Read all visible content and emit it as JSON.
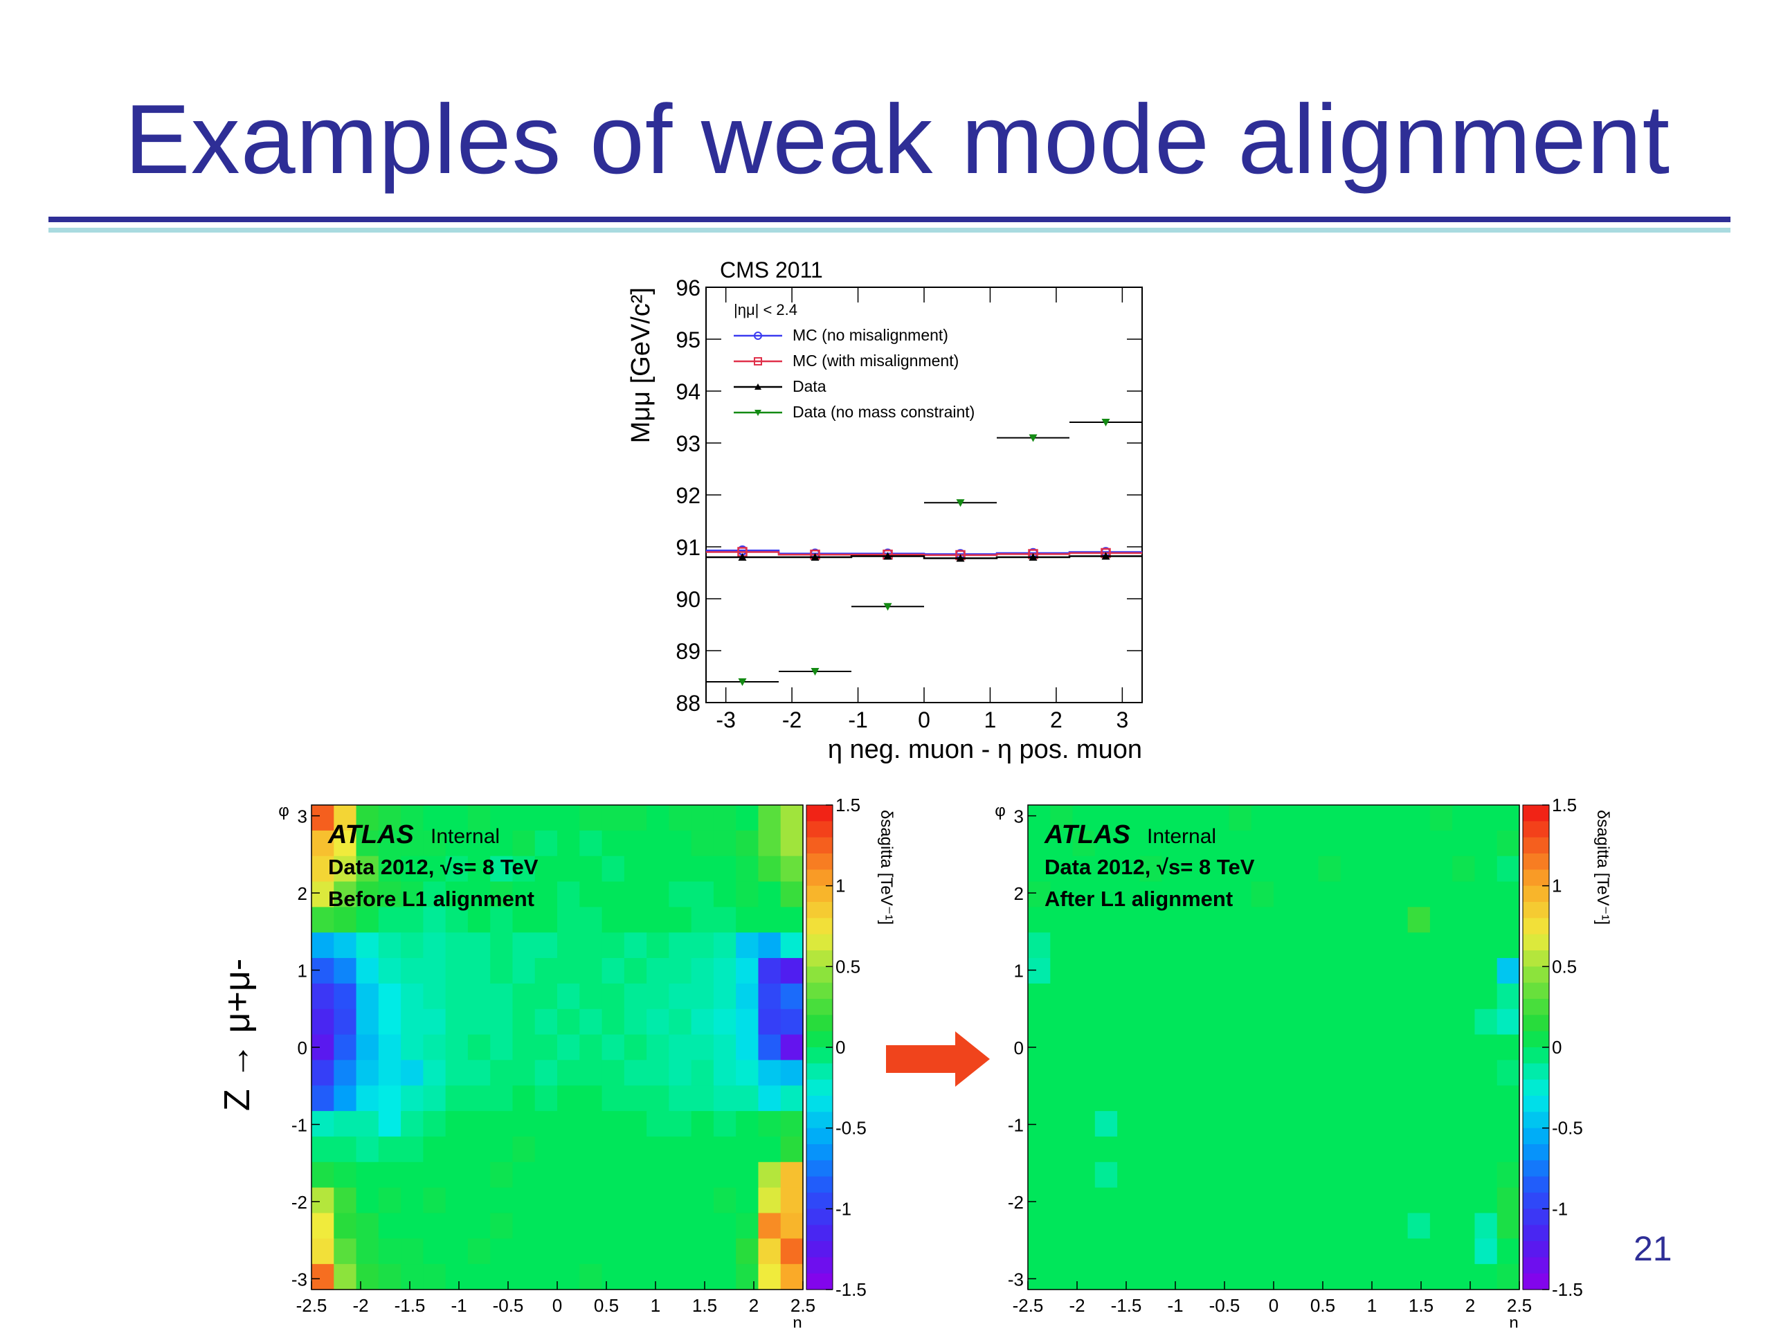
{
  "slide": {
    "title": "Examples of weak mode alignment",
    "page_number": "21",
    "side_label": "Z → μ+μ-",
    "colors": {
      "title": "#2e2e96",
      "rule": "#2e2e96",
      "rule_accent": "#a9dbe0",
      "arrow": "#f0441c"
    }
  },
  "chart_data": [
    {
      "type": "scatter",
      "title": "CMS 2011",
      "xlabel": "η neg. muon - η pos. muon",
      "ylabel": "Mμμ [GeV/c²]",
      "xlim": [
        -3.3,
        3.3
      ],
      "ylim": [
        88,
        96
      ],
      "xticks": [
        "-3",
        "-2",
        "-1",
        "0",
        "1",
        "2",
        "3"
      ],
      "yticks": [
        "88",
        "89",
        "90",
        "91",
        "92",
        "93",
        "94",
        "95",
        "96"
      ],
      "legend_header": "|ημ| < 2.4",
      "legend_position": "top-left",
      "series": [
        {
          "name": "MC (no misalignment)",
          "color": "#3a3af0",
          "marker": "circle",
          "x": [
            -2.75,
            -1.65,
            -0.55,
            0.55,
            1.65,
            2.75
          ],
          "xerr": 0.55,
          "y": [
            90.93,
            90.87,
            90.87,
            90.86,
            90.88,
            90.9
          ]
        },
        {
          "name": "MC (with misalignment)",
          "color": "#e0304a",
          "marker": "square",
          "x": [
            -2.75,
            -1.65,
            -0.55,
            0.55,
            1.65,
            2.75
          ],
          "xerr": 0.55,
          "y": [
            90.9,
            90.85,
            90.85,
            90.84,
            90.86,
            90.88
          ]
        },
        {
          "name": "Data",
          "color": "#000000",
          "marker": "triangle-up",
          "x": [
            -2.75,
            -1.65,
            -0.55,
            0.55,
            1.65,
            2.75
          ],
          "xerr": 0.55,
          "y": [
            90.8,
            90.8,
            90.82,
            90.78,
            90.8,
            90.82
          ]
        },
        {
          "name": "Data (no mass constraint)",
          "color": "#138a13",
          "marker": "triangle-down",
          "x": [
            -2.75,
            -1.65,
            -0.55,
            0.55,
            1.65,
            2.75
          ],
          "xerr": 0.55,
          "y": [
            88.4,
            88.6,
            89.85,
            91.85,
            93.1,
            93.4
          ]
        }
      ]
    },
    {
      "type": "heatmap",
      "experiment": "ATLAS",
      "status": "Internal",
      "line1": "Data 2012, √s= 8 TeV",
      "line2": "Before L1 alignment",
      "xlabel": "η",
      "ylabel": "φ",
      "zlabel": "δsagitta [TeV⁻¹]",
      "xlim": [
        -2.5,
        2.5
      ],
      "ylim": [
        -3.14,
        3.14
      ],
      "zlim": [
        -1.5,
        1.5
      ],
      "xticks": [
        "-2.5",
        "-2",
        "-1.5",
        "-1",
        "-0.5",
        "0",
        "0.5",
        "1",
        "1.5",
        "2",
        "2.5"
      ],
      "yticks": [
        "-3",
        "-2",
        "-1",
        "0",
        "1",
        "2",
        "3"
      ],
      "zticks": [
        "-1.5",
        "-1",
        "-0.5",
        "0",
        "0.5",
        "1",
        "1.5"
      ],
      "values": [
        [
          1.25,
          0.8,
          0.15,
          0.1,
          0.05,
          0.0,
          0.0,
          0.05,
          0.0,
          0.0,
          0.0,
          0.0,
          0.05,
          0.05,
          0.05,
          0.0,
          0.05,
          0.05,
          0.05,
          0.0,
          0.3,
          0.5
        ],
        [
          0.9,
          0.7,
          0.1,
          0.05,
          0.05,
          0.05,
          0.0,
          0.0,
          0.0,
          0.05,
          -0.05,
          0.0,
          -0.05,
          0.0,
          0.0,
          0.0,
          0.0,
          0.05,
          0.05,
          0.1,
          0.3,
          0.5
        ],
        [
          0.8,
          0.6,
          0.3,
          0.05,
          0.0,
          0.0,
          -0.05,
          0.0,
          -0.1,
          -0.05,
          0.0,
          0.0,
          0.0,
          -0.05,
          0.0,
          0.0,
          0.0,
          0.0,
          0.0,
          0.05,
          0.2,
          0.35
        ],
        [
          0.65,
          0.35,
          0.15,
          0.1,
          0.05,
          -0.05,
          0.0,
          0.0,
          0.05,
          0.0,
          0.0,
          -0.05,
          0.0,
          0.0,
          0.0,
          0.0,
          -0.05,
          -0.05,
          0.0,
          0.05,
          0.0,
          0.2
        ],
        [
          0.2,
          0.15,
          0.05,
          -0.05,
          -0.05,
          -0.1,
          -0.05,
          0.0,
          -0.05,
          0.0,
          0.0,
          -0.05,
          -0.05,
          0.0,
          0.0,
          0.0,
          0.0,
          -0.05,
          -0.05,
          0.0,
          0.0,
          0.0
        ],
        [
          -0.55,
          -0.45,
          -0.25,
          -0.15,
          -0.1,
          -0.15,
          -0.1,
          -0.1,
          -0.05,
          -0.1,
          -0.1,
          -0.05,
          -0.05,
          -0.05,
          -0.1,
          -0.05,
          -0.1,
          -0.1,
          -0.15,
          -0.45,
          -0.55,
          -0.25
        ],
        [
          -0.85,
          -0.7,
          -0.35,
          -0.2,
          -0.15,
          -0.15,
          -0.1,
          -0.1,
          -0.05,
          -0.1,
          -0.05,
          -0.05,
          -0.05,
          -0.1,
          -0.05,
          -0.1,
          -0.1,
          -0.15,
          -0.2,
          -0.35,
          -1.05,
          -1.2
        ],
        [
          -1.05,
          -0.9,
          -0.45,
          -0.3,
          -0.2,
          -0.15,
          -0.1,
          -0.1,
          -0.1,
          -0.05,
          -0.05,
          -0.1,
          -0.05,
          -0.05,
          -0.1,
          -0.1,
          -0.15,
          -0.15,
          -0.2,
          -0.4,
          -0.95,
          -0.8
        ],
        [
          -1.15,
          -0.95,
          -0.45,
          -0.3,
          -0.2,
          -0.2,
          -0.1,
          -0.1,
          -0.1,
          -0.05,
          -0.1,
          -0.05,
          -0.1,
          -0.05,
          -0.1,
          -0.15,
          -0.1,
          -0.2,
          -0.25,
          -0.35,
          -1.0,
          -0.95
        ],
        [
          -1.25,
          -0.85,
          -0.5,
          -0.35,
          -0.2,
          -0.15,
          -0.1,
          -0.05,
          -0.1,
          -0.05,
          -0.05,
          -0.1,
          -0.05,
          -0.1,
          -0.05,
          -0.1,
          -0.15,
          -0.15,
          -0.2,
          -0.35,
          -0.85,
          -1.3
        ],
        [
          -1.0,
          -0.7,
          -0.45,
          -0.35,
          -0.4,
          -0.2,
          -0.1,
          -0.1,
          -0.05,
          -0.05,
          -0.1,
          -0.05,
          -0.05,
          -0.05,
          -0.1,
          -0.1,
          -0.15,
          -0.1,
          -0.2,
          -0.25,
          -0.45,
          -0.5
        ],
        [
          -0.85,
          -0.6,
          -0.35,
          -0.3,
          -0.2,
          -0.15,
          -0.05,
          -0.05,
          -0.05,
          0.0,
          -0.05,
          0.0,
          0.0,
          -0.05,
          -0.05,
          -0.05,
          -0.1,
          -0.1,
          -0.15,
          -0.15,
          -0.35,
          -0.2
        ],
        [
          -0.2,
          -0.15,
          -0.15,
          -0.3,
          -0.1,
          -0.05,
          0.0,
          0.0,
          0.0,
          0.0,
          0.0,
          0.0,
          0.0,
          0.0,
          0.0,
          -0.05,
          -0.05,
          0.0,
          -0.05,
          0.0,
          0.05,
          0.1
        ],
        [
          -0.05,
          -0.05,
          -0.1,
          -0.05,
          -0.05,
          0.0,
          0.0,
          0.0,
          0.0,
          0.05,
          0.0,
          0.0,
          0.0,
          0.0,
          0.0,
          0.0,
          0.0,
          0.0,
          0.0,
          0.0,
          0.0,
          0.15
        ],
        [
          0.1,
          0.05,
          0.0,
          0.0,
          0.0,
          0.0,
          0.0,
          0.0,
          0.05,
          0.0,
          0.0,
          0.0,
          0.0,
          0.0,
          0.0,
          0.0,
          0.0,
          0.0,
          0.0,
          0.0,
          0.55,
          0.9
        ],
        [
          0.55,
          0.2,
          0.0,
          0.05,
          0.0,
          0.05,
          0.0,
          0.0,
          0.0,
          0.0,
          0.0,
          0.0,
          0.0,
          0.0,
          0.0,
          0.0,
          0.0,
          0.0,
          0.05,
          0.0,
          0.65,
          0.9
        ],
        [
          0.7,
          0.15,
          0.1,
          0.0,
          0.0,
          0.0,
          0.0,
          0.0,
          0.05,
          0.0,
          0.0,
          0.0,
          0.0,
          0.0,
          0.0,
          0.0,
          0.0,
          0.0,
          0.0,
          0.05,
          1.1,
          0.95
        ],
        [
          0.75,
          0.3,
          0.1,
          0.05,
          0.05,
          0.0,
          0.0,
          0.05,
          0.0,
          0.0,
          0.0,
          0.0,
          0.0,
          0.0,
          0.0,
          0.0,
          0.0,
          0.0,
          0.0,
          0.15,
          0.8,
          1.2
        ],
        [
          1.2,
          0.45,
          0.15,
          0.1,
          0.05,
          0.05,
          0.0,
          0.0,
          0.0,
          0.0,
          0.0,
          0.0,
          0.05,
          0.0,
          0.0,
          0.0,
          0.0,
          0.0,
          0.0,
          0.1,
          0.7,
          1.0
        ]
      ]
    },
    {
      "type": "heatmap",
      "experiment": "ATLAS",
      "status": "Internal",
      "line1": "Data 2012, √s= 8 TeV",
      "line2": "After L1 alignment",
      "xlabel": "η",
      "ylabel": "φ",
      "zlabel": "δsagitta [TeV⁻¹]",
      "xlim": [
        -2.5,
        2.5
      ],
      "ylim": [
        -3.14,
        3.14
      ],
      "zlim": [
        -1.5,
        1.5
      ],
      "xticks": [
        "-2.5",
        "-2",
        "-1.5",
        "-1",
        "-0.5",
        "0",
        "0.5",
        "1",
        "1.5",
        "2",
        "2.5"
      ],
      "yticks": [
        "-3",
        "-2",
        "-1",
        "0",
        "1",
        "2",
        "3"
      ],
      "zticks": [
        "-1.5",
        "-1",
        "-0.5",
        "0",
        "0.5",
        "1",
        "1.5"
      ],
      "values": [
        [
          0.0,
          0.05,
          0.0,
          0.0,
          0.0,
          0.0,
          0.0,
          0.0,
          0.0,
          0.05,
          0.0,
          0.0,
          0.0,
          0.0,
          0.0,
          0.0,
          0.0,
          0.0,
          0.05,
          0.0,
          0.0,
          0.0
        ],
        [
          0.0,
          0.0,
          0.05,
          0.0,
          0.0,
          0.0,
          0.0,
          0.0,
          0.0,
          0.0,
          0.0,
          0.0,
          0.0,
          0.0,
          0.0,
          0.0,
          0.0,
          0.0,
          0.0,
          0.0,
          0.0,
          0.05
        ],
        [
          0.0,
          0.0,
          0.0,
          0.0,
          0.0,
          0.05,
          0.0,
          0.0,
          0.0,
          0.0,
          0.0,
          0.0,
          0.0,
          0.05,
          0.0,
          0.0,
          0.0,
          0.0,
          0.0,
          0.05,
          0.0,
          -0.05
        ],
        [
          0.05,
          0.0,
          0.0,
          0.0,
          0.0,
          0.0,
          0.0,
          0.0,
          0.0,
          0.0,
          0.05,
          0.0,
          0.0,
          0.0,
          0.0,
          0.0,
          0.0,
          0.0,
          0.0,
          0.0,
          0.0,
          0.0
        ],
        [
          0.0,
          0.0,
          0.0,
          0.0,
          0.0,
          0.0,
          0.0,
          0.0,
          0.0,
          0.0,
          0.0,
          0.0,
          0.0,
          0.0,
          0.0,
          0.0,
          0.0,
          0.2,
          0.0,
          0.0,
          0.0,
          0.0
        ],
        [
          -0.1,
          0.0,
          0.0,
          0.0,
          0.0,
          0.0,
          0.0,
          0.0,
          0.0,
          0.0,
          0.0,
          0.0,
          0.0,
          0.0,
          0.0,
          0.0,
          0.0,
          0.0,
          0.0,
          0.0,
          0.0,
          0.0
        ],
        [
          -0.15,
          0.0,
          0.0,
          0.0,
          0.0,
          0.0,
          0.0,
          0.0,
          0.0,
          0.0,
          0.0,
          0.0,
          0.0,
          0.0,
          0.0,
          0.0,
          0.0,
          0.0,
          0.0,
          0.0,
          0.0,
          -0.45
        ],
        [
          0.0,
          0.0,
          0.0,
          0.0,
          0.0,
          0.0,
          0.0,
          0.0,
          0.0,
          0.0,
          0.0,
          0.0,
          0.0,
          0.0,
          0.0,
          0.0,
          0.0,
          0.0,
          0.0,
          0.0,
          0.0,
          -0.1
        ],
        [
          0.0,
          0.0,
          0.0,
          0.0,
          0.0,
          0.0,
          0.0,
          0.0,
          0.0,
          0.0,
          0.0,
          0.0,
          0.0,
          0.0,
          0.0,
          0.0,
          0.0,
          0.0,
          0.0,
          0.0,
          -0.1,
          -0.2
        ],
        [
          0.0,
          0.0,
          0.0,
          0.0,
          0.0,
          0.0,
          0.0,
          0.0,
          0.0,
          0.0,
          0.0,
          0.0,
          0.0,
          0.0,
          0.0,
          0.0,
          0.0,
          0.0,
          0.0,
          0.0,
          0.0,
          0.0
        ],
        [
          0.0,
          0.0,
          0.0,
          0.0,
          0.0,
          0.0,
          0.0,
          0.0,
          0.0,
          0.0,
          0.0,
          0.0,
          0.0,
          0.0,
          0.0,
          0.0,
          0.0,
          0.0,
          0.0,
          0.0,
          0.0,
          -0.05
        ],
        [
          0.0,
          0.0,
          0.0,
          0.0,
          0.0,
          0.0,
          0.0,
          0.0,
          0.0,
          0.0,
          0.0,
          0.0,
          0.0,
          0.0,
          0.0,
          0.0,
          0.0,
          0.0,
          0.0,
          0.0,
          0.0,
          0.0
        ],
        [
          0.0,
          0.0,
          0.0,
          -0.15,
          0.0,
          0.0,
          0.0,
          0.0,
          0.0,
          0.0,
          0.0,
          0.0,
          0.0,
          0.0,
          0.0,
          0.0,
          0.0,
          0.0,
          0.0,
          0.0,
          0.0,
          0.0
        ],
        [
          0.0,
          0.0,
          0.0,
          0.0,
          0.0,
          0.0,
          0.0,
          0.0,
          0.0,
          0.0,
          0.0,
          0.0,
          0.0,
          0.0,
          0.0,
          0.0,
          0.0,
          0.0,
          0.0,
          0.0,
          0.0,
          0.0
        ],
        [
          0.0,
          0.0,
          0.0,
          -0.1,
          0.0,
          0.0,
          0.0,
          0.0,
          0.0,
          0.0,
          0.0,
          0.0,
          0.0,
          0.0,
          0.0,
          0.0,
          0.0,
          0.0,
          0.0,
          0.0,
          0.0,
          0.05
        ],
        [
          0.0,
          0.0,
          0.0,
          0.0,
          0.0,
          0.0,
          0.0,
          0.0,
          0.0,
          0.0,
          0.0,
          0.0,
          0.0,
          0.0,
          0.0,
          0.0,
          0.0,
          0.0,
          0.0,
          0.0,
          0.0,
          0.1
        ],
        [
          0.0,
          0.0,
          0.0,
          0.0,
          0.0,
          0.0,
          0.0,
          0.0,
          0.0,
          0.0,
          0.0,
          0.0,
          0.0,
          0.0,
          0.0,
          0.0,
          0.0,
          -0.1,
          0.0,
          0.0,
          -0.15,
          0.1
        ],
        [
          0.0,
          0.0,
          0.0,
          0.0,
          0.0,
          0.0,
          0.0,
          0.0,
          0.0,
          0.0,
          0.0,
          0.0,
          0.0,
          0.0,
          0.0,
          0.0,
          0.0,
          0.0,
          0.0,
          0.0,
          -0.2,
          0.0
        ],
        [
          0.0,
          0.0,
          0.0,
          0.0,
          0.0,
          0.0,
          0.0,
          0.0,
          0.0,
          0.0,
          0.0,
          0.0,
          0.0,
          0.0,
          0.0,
          0.0,
          0.0,
          0.0,
          0.0,
          0.0,
          0.0,
          0.05
        ]
      ]
    }
  ]
}
